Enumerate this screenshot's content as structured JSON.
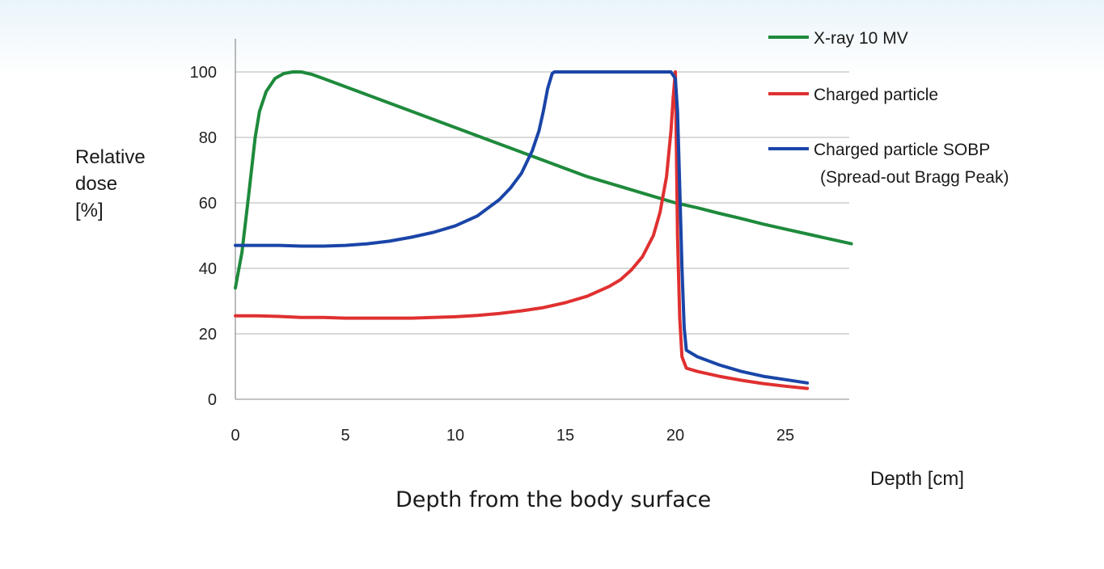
{
  "chart_data": {
    "type": "line",
    "title": "",
    "ylabel_lines": [
      "Relative",
      "dose",
      "[%]"
    ],
    "xlabel": "Depth [cm]",
    "caption": "Depth from the body surface",
    "xlim": [
      0,
      28
    ],
    "ylim": [
      0,
      110
    ],
    "xticks": [
      0,
      5,
      10,
      15,
      20,
      25
    ],
    "yticks": [
      0,
      20,
      40,
      60,
      80,
      100
    ],
    "grid": "horizontal",
    "legend_position": "top-right",
    "series": [
      {
        "name": "X-ray 10 MV",
        "color": "#1e8a3c",
        "x": [
          0,
          0.3,
          0.6,
          0.9,
          1.1,
          1.4,
          1.8,
          2.2,
          2.6,
          3.0,
          3.5,
          4.0,
          5.0,
          6.0,
          7.0,
          8.0,
          9.0,
          10.0,
          11.0,
          12.0,
          13.0,
          14.0,
          15.0,
          16.0,
          17.0,
          18.0,
          19.0,
          20.0,
          21.0,
          22.0,
          23.0,
          24.0,
          25.0,
          26.0,
          27.0,
          28.0
        ],
        "y": [
          34,
          45,
          62,
          80,
          88,
          94,
          98,
          99.5,
          100,
          100,
          99.2,
          98,
          95.5,
          93,
          90.5,
          88,
          85.5,
          83,
          80.5,
          78,
          75.5,
          73,
          70.5,
          68,
          66,
          64,
          62,
          60,
          58.5,
          56.8,
          55.2,
          53.5,
          52,
          50.5,
          49,
          47.5
        ]
      },
      {
        "name": "Charged particle",
        "color": "#e03030",
        "x": [
          0,
          1,
          2,
          3,
          4,
          5,
          6,
          7,
          8,
          9,
          10,
          11,
          12,
          13,
          14,
          15,
          16,
          17,
          17.5,
          18,
          18.5,
          19,
          19.3,
          19.6,
          19.8,
          19.9,
          20.0,
          20.05,
          20.1,
          20.2,
          20.3,
          20.5,
          21,
          22,
          23,
          24,
          25,
          26
        ],
        "y": [
          25.5,
          25.5,
          25.3,
          25,
          25,
          24.8,
          24.8,
          24.8,
          24.8,
          25,
          25.2,
          25.6,
          26.2,
          27,
          28,
          29.5,
          31.5,
          34.5,
          36.5,
          39.5,
          43.5,
          50,
          57,
          68,
          82,
          92,
          100,
          75,
          50,
          25,
          13,
          9.5,
          8.5,
          7,
          5.8,
          4.8,
          4,
          3.3
        ]
      },
      {
        "name": "Charged particle SOBP",
        "subtitle": "(Spread-out Bragg Peak)",
        "color": "#1a45a8",
        "x": [
          0,
          1,
          2,
          3,
          4,
          5,
          6,
          7,
          8,
          9,
          10,
          11,
          12,
          12.5,
          13,
          13.5,
          13.8,
          14.0,
          14.2,
          14.4,
          14.5,
          15,
          16,
          17,
          18,
          19,
          19.8,
          20.0,
          20.1,
          20.2,
          20.3,
          20.4,
          20.5,
          21,
          22,
          23,
          24,
          25,
          26
        ],
        "y": [
          47,
          47,
          47,
          46.8,
          46.8,
          47,
          47.5,
          48.3,
          49.5,
          51,
          53,
          56,
          61,
          64.5,
          69,
          76,
          82,
          88,
          95,
          99.5,
          100,
          100,
          100,
          100,
          100,
          100,
          100,
          98,
          88,
          65,
          40,
          22,
          15,
          13,
          10.5,
          8.5,
          7,
          6,
          5
        ]
      }
    ]
  }
}
